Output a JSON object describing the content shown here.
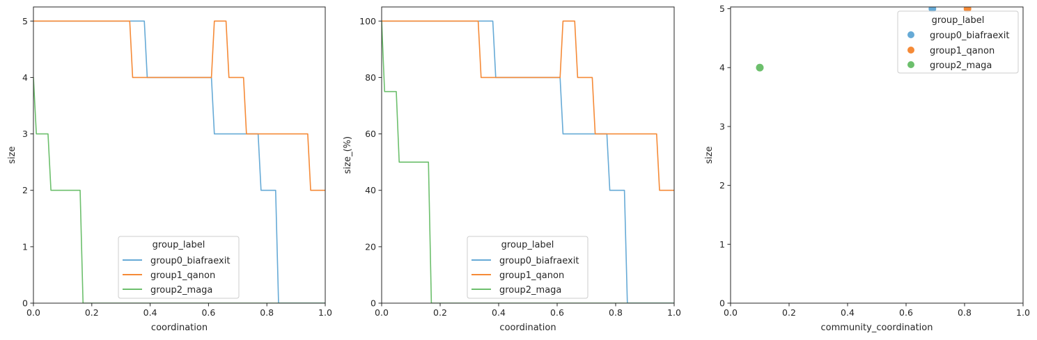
{
  "figure": {
    "colors": {
      "group0_biafraexit": "#66aad6",
      "group1_qanon": "#f58a37",
      "group2_maga": "#6cbf6c",
      "axis": "#262626",
      "legend_border": "#cccccc"
    }
  },
  "chart_data": [
    {
      "type": "line",
      "xlabel": "coordination",
      "ylabel": "size",
      "xlim": [
        0,
        1
      ],
      "ylim": [
        0,
        5.25
      ],
      "xticks": [
        "0.0",
        "0.2",
        "0.4",
        "0.6",
        "0.8",
        "1.0"
      ],
      "yticks": [
        "0",
        "1",
        "2",
        "3",
        "4",
        "5"
      ],
      "grid": false,
      "legend": {
        "title": "group_label",
        "placement": "lower-center"
      },
      "series": [
        {
          "name": "group0_biafraexit",
          "x": [
            0,
            0.38,
            0.39,
            0.61,
            0.62,
            0.77,
            0.78,
            0.83,
            0.84,
            1.0
          ],
          "y": [
            5,
            5,
            4,
            4,
            3,
            3,
            2,
            2,
            0,
            0
          ]
        },
        {
          "name": "group1_qanon",
          "x": [
            0,
            0.33,
            0.34,
            0.61,
            0.62,
            0.66,
            0.67,
            0.72,
            0.73,
            0.94,
            0.95,
            1.0
          ],
          "y": [
            5,
            5,
            4,
            4,
            5,
            5,
            4,
            4,
            3,
            3,
            2,
            2
          ]
        },
        {
          "name": "group2_maga",
          "x": [
            0,
            0.01,
            0.05,
            0.06,
            0.16,
            0.17,
            1.0
          ],
          "y": [
            4,
            3,
            3,
            2,
            2,
            0,
            0
          ]
        }
      ]
    },
    {
      "type": "line",
      "xlabel": "coordination",
      "ylabel": "size_(%)",
      "xlim": [
        0,
        1
      ],
      "ylim": [
        0,
        105
      ],
      "xticks": [
        "0.0",
        "0.2",
        "0.4",
        "0.6",
        "0.8",
        "1.0"
      ],
      "yticks": [
        "0",
        "20",
        "40",
        "60",
        "80",
        "100"
      ],
      "grid": false,
      "legend": {
        "title": "group_label",
        "placement": "lower-center"
      },
      "series": [
        {
          "name": "group0_biafraexit",
          "x": [
            0,
            0.38,
            0.39,
            0.61,
            0.62,
            0.77,
            0.78,
            0.83,
            0.84,
            1.0
          ],
          "y": [
            100,
            100,
            80,
            80,
            60,
            60,
            40,
            40,
            0,
            0
          ]
        },
        {
          "name": "group1_qanon",
          "x": [
            0,
            0.33,
            0.34,
            0.61,
            0.62,
            0.66,
            0.67,
            0.72,
            0.73,
            0.94,
            0.95,
            1.0
          ],
          "y": [
            100,
            100,
            80,
            80,
            100,
            100,
            80,
            80,
            60,
            60,
            40,
            40
          ]
        },
        {
          "name": "group2_maga",
          "x": [
            0,
            0.01,
            0.05,
            0.06,
            0.16,
            0.17,
            1.0
          ],
          "y": [
            100,
            75,
            75,
            50,
            50,
            0,
            0
          ]
        }
      ]
    },
    {
      "type": "scatter",
      "xlabel": "community_coordination",
      "ylabel": "size",
      "xlim": [
        0,
        1
      ],
      "ylim": [
        0,
        5.03
      ],
      "xticks": [
        "0.0",
        "0.2",
        "0.4",
        "0.6",
        "0.8",
        "1.0"
      ],
      "yticks": [
        "0",
        "1",
        "2",
        "3",
        "4",
        "5"
      ],
      "grid": false,
      "legend": {
        "title": "group_label",
        "placement": "upper-right"
      },
      "series": [
        {
          "name": "group0_biafraexit",
          "x": [
            0.69
          ],
          "y": [
            5
          ]
        },
        {
          "name": "group1_qanon",
          "x": [
            0.81
          ],
          "y": [
            5
          ]
        },
        {
          "name": "group2_maga",
          "x": [
            0.1
          ],
          "y": [
            4
          ]
        }
      ]
    }
  ]
}
